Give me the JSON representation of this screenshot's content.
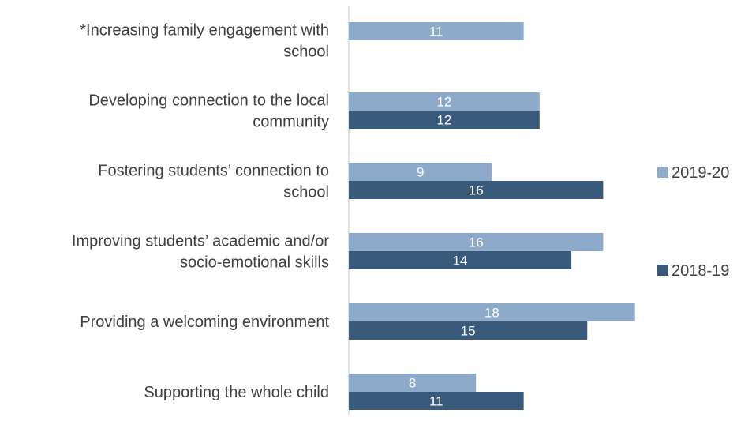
{
  "chart_data": {
    "type": "bar",
    "orientation": "horizontal",
    "categories": [
      [
        "*Increasing family engagement with",
        "school"
      ],
      [
        "Developing connection to the local",
        "community"
      ],
      [
        "Fostering students’ connection to",
        "school"
      ],
      [
        "Improving students’ academic and/or",
        "socio-emotional skills"
      ],
      [
        "Providing a welcoming environment"
      ],
      [
        "Supporting the whole child"
      ]
    ],
    "series": [
      {
        "name": "2019-20",
        "color": "#8eaacb",
        "values": [
          11,
          12,
          9,
          16,
          18,
          8
        ]
      },
      {
        "name": "2018-19",
        "color": "#3a5a7b",
        "values": [
          null,
          12,
          16,
          14,
          15,
          11
        ]
      }
    ],
    "xlim": [
      0,
      18
    ],
    "grid": false,
    "legend": "right",
    "axis_color": "#d9d9d9"
  }
}
